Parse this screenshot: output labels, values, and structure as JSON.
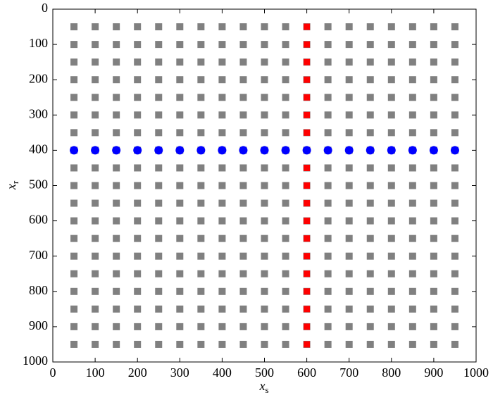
{
  "chart_data": {
    "type": "scatter",
    "xlabel": "x",
    "xlabel_sub": "s",
    "ylabel": "x",
    "ylabel_sub": "r",
    "xlim": [
      0,
      1000
    ],
    "ylim": [
      1000,
      0
    ],
    "xticks": [
      0,
      100,
      200,
      300,
      400,
      500,
      600,
      700,
      800,
      900,
      1000
    ],
    "yticks": [
      0,
      100,
      200,
      300,
      400,
      500,
      600,
      700,
      800,
      900,
      1000
    ],
    "series": [
      {
        "color": "#808080",
        "marker": "square",
        "x": [
          50,
          100,
          150,
          200,
          250,
          300,
          350,
          400,
          450,
          500,
          550,
          600,
          650,
          700,
          750,
          800,
          850,
          900,
          950,
          50,
          100,
          150,
          200,
          250,
          300,
          350,
          400,
          450,
          500,
          550,
          600,
          650,
          700,
          750,
          800,
          850,
          900,
          950,
          50,
          100,
          150,
          200,
          250,
          300,
          350,
          400,
          450,
          500,
          550,
          600,
          650,
          700,
          750,
          800,
          850,
          900,
          950,
          50,
          100,
          150,
          200,
          250,
          300,
          350,
          400,
          450,
          500,
          550,
          600,
          650,
          700,
          750,
          800,
          850,
          900,
          950,
          50,
          100,
          150,
          200,
          250,
          300,
          350,
          400,
          450,
          500,
          550,
          600,
          650,
          700,
          750,
          800,
          850,
          900,
          950,
          50,
          100,
          150,
          200,
          250,
          300,
          350,
          400,
          450,
          500,
          550,
          600,
          650,
          700,
          750,
          800,
          850,
          900,
          950,
          50,
          100,
          150,
          200,
          250,
          300,
          350,
          400,
          450,
          500,
          550,
          600,
          650,
          700,
          750,
          800,
          850,
          900,
          950,
          50,
          100,
          150,
          200,
          250,
          300,
          350,
          400,
          450,
          500,
          550,
          600,
          650,
          700,
          750,
          800,
          850,
          900,
          950,
          50,
          100,
          150,
          200,
          250,
          300,
          350,
          400,
          450,
          500,
          550,
          600,
          650,
          700,
          750,
          800,
          850,
          900,
          950,
          50,
          100,
          150,
          200,
          250,
          300,
          350,
          400,
          450,
          500,
          550,
          600,
          650,
          700,
          750,
          800,
          850,
          900,
          950,
          50,
          100,
          150,
          200,
          250,
          300,
          350,
          400,
          450,
          500,
          550,
          600,
          650,
          700,
          750,
          800,
          850,
          900,
          950,
          50,
          100,
          150,
          200,
          250,
          300,
          350,
          400,
          450,
          500,
          550,
          600,
          650,
          700,
          750,
          800,
          850,
          900,
          950,
          50,
          100,
          150,
          200,
          250,
          300,
          350,
          400,
          450,
          500,
          550,
          600,
          650,
          700,
          750,
          800,
          850,
          900,
          950,
          50,
          100,
          150,
          200,
          250,
          300,
          350,
          400,
          450,
          500,
          550,
          600,
          650,
          700,
          750,
          800,
          850,
          900,
          950,
          50,
          100,
          150,
          200,
          250,
          300,
          350,
          400,
          450,
          500,
          550,
          600,
          650,
          700,
          750,
          800,
          850,
          900,
          950,
          50,
          100,
          150,
          200,
          250,
          300,
          350,
          400,
          450,
          500,
          550,
          600,
          650,
          700,
          750,
          800,
          850,
          900,
          950,
          50,
          100,
          150,
          200,
          250,
          300,
          350,
          400,
          450,
          500,
          550,
          600,
          650,
          700,
          750,
          800,
          850,
          900,
          950,
          50,
          100,
          150,
          200,
          250,
          300,
          350,
          400,
          450,
          500,
          550,
          600,
          650,
          700,
          750,
          800,
          850,
          900,
          950,
          50,
          100,
          150,
          200,
          250,
          300,
          350,
          400,
          450,
          500,
          550,
          600,
          650,
          700,
          750,
          800,
          850,
          900,
          950
        ],
        "y": [
          50,
          50,
          50,
          50,
          50,
          50,
          50,
          50,
          50,
          50,
          50,
          50,
          50,
          50,
          50,
          50,
          50,
          50,
          50,
          100,
          100,
          100,
          100,
          100,
          100,
          100,
          100,
          100,
          100,
          100,
          100,
          100,
          100,
          100,
          100,
          100,
          100,
          100,
          150,
          150,
          150,
          150,
          150,
          150,
          150,
          150,
          150,
          150,
          150,
          150,
          150,
          150,
          150,
          150,
          150,
          150,
          150,
          200,
          200,
          200,
          200,
          200,
          200,
          200,
          200,
          200,
          200,
          200,
          200,
          200,
          200,
          200,
          200,
          200,
          200,
          200,
          250,
          250,
          250,
          250,
          250,
          250,
          250,
          250,
          250,
          250,
          250,
          250,
          250,
          250,
          250,
          250,
          250,
          250,
          250,
          300,
          300,
          300,
          300,
          300,
          300,
          300,
          300,
          300,
          300,
          300,
          300,
          300,
          300,
          300,
          300,
          300,
          300,
          300,
          350,
          350,
          350,
          350,
          350,
          350,
          350,
          350,
          350,
          350,
          350,
          350,
          350,
          350,
          350,
          350,
          350,
          350,
          350,
          400,
          400,
          400,
          400,
          400,
          400,
          400,
          400,
          400,
          400,
          400,
          400,
          400,
          400,
          400,
          400,
          400,
          400,
          400,
          450,
          450,
          450,
          450,
          450,
          450,
          450,
          450,
          450,
          450,
          450,
          450,
          450,
          450,
          450,
          450,
          450,
          450,
          450,
          500,
          500,
          500,
          500,
          500,
          500,
          500,
          500,
          500,
          500,
          500,
          500,
          500,
          500,
          500,
          500,
          500,
          500,
          500,
          550,
          550,
          550,
          550,
          550,
          550,
          550,
          550,
          550,
          550,
          550,
          550,
          550,
          550,
          550,
          550,
          550,
          550,
          550,
          600,
          600,
          600,
          600,
          600,
          600,
          600,
          600,
          600,
          600,
          600,
          600,
          600,
          600,
          600,
          600,
          600,
          600,
          600,
          650,
          650,
          650,
          650,
          650,
          650,
          650,
          650,
          650,
          650,
          650,
          650,
          650,
          650,
          650,
          650,
          650,
          650,
          650,
          700,
          700,
          700,
          700,
          700,
          700,
          700,
          700,
          700,
          700,
          700,
          700,
          700,
          700,
          700,
          700,
          700,
          700,
          700,
          750,
          750,
          750,
          750,
          750,
          750,
          750,
          750,
          750,
          750,
          750,
          750,
          750,
          750,
          750,
          750,
          750,
          750,
          750,
          800,
          800,
          800,
          800,
          800,
          800,
          800,
          800,
          800,
          800,
          800,
          800,
          800,
          800,
          800,
          800,
          800,
          800,
          800,
          850,
          850,
          850,
          850,
          850,
          850,
          850,
          850,
          850,
          850,
          850,
          850,
          850,
          850,
          850,
          850,
          850,
          850,
          850,
          900,
          900,
          900,
          900,
          900,
          900,
          900,
          900,
          900,
          900,
          900,
          900,
          900,
          900,
          900,
          900,
          900,
          900,
          900,
          950,
          950,
          950,
          950,
          950,
          950,
          950,
          950,
          950,
          950,
          950,
          950,
          950,
          950,
          950,
          950,
          950,
          950,
          950
        ]
      },
      {
        "color": "#ff0000",
        "marker": "square",
        "x": [
          600,
          600,
          600,
          600,
          600,
          600,
          600,
          600,
          600,
          600,
          600,
          600,
          600,
          600,
          600,
          600,
          600,
          600,
          600
        ],
        "y": [
          50,
          100,
          150,
          200,
          250,
          300,
          350,
          400,
          450,
          500,
          550,
          600,
          650,
          700,
          750,
          800,
          850,
          900,
          950
        ]
      },
      {
        "color": "#0000ff",
        "marker": "circle",
        "x": [
          50,
          100,
          150,
          200,
          250,
          300,
          350,
          400,
          450,
          500,
          550,
          600,
          650,
          700,
          750,
          800,
          850,
          900,
          950
        ],
        "y": [
          400,
          400,
          400,
          400,
          400,
          400,
          400,
          400,
          400,
          400,
          400,
          400,
          400,
          400,
          400,
          400,
          400,
          400,
          400
        ]
      }
    ]
  }
}
